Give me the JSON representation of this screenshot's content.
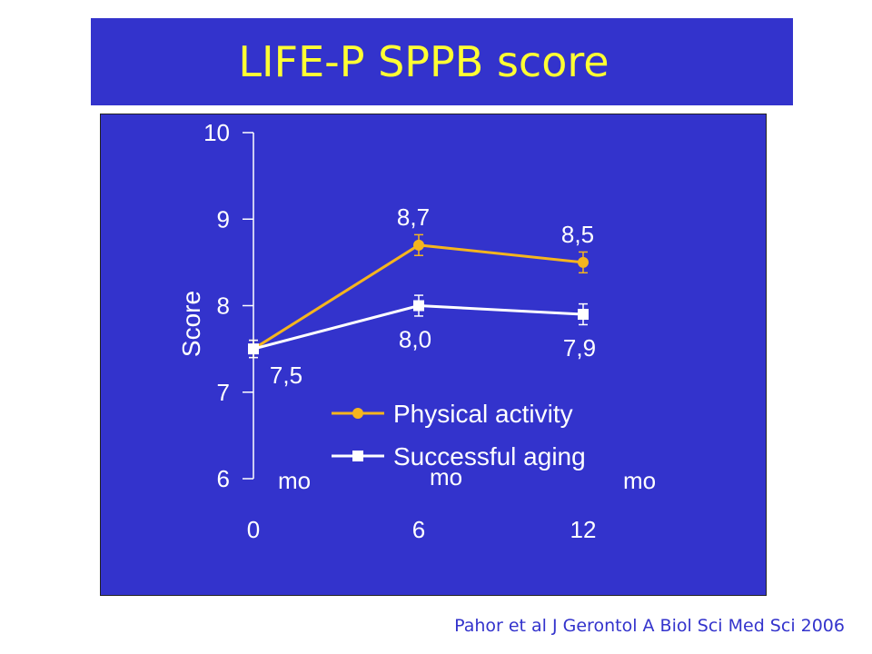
{
  "slide": {
    "title": "LIFE-P SPPB score",
    "citation": "Pahor et al J Gerontol A Biol Sci Med Sci 2006"
  },
  "colors": {
    "background": "#3333cc",
    "title": "#ffff33",
    "physical_activity": "#f5b51e",
    "successful_aging": "#ffffff",
    "citation": "#3333cc"
  },
  "chart_data": {
    "type": "line",
    "title": "",
    "xlabel": "",
    "ylabel": "Score",
    "ylim": [
      6,
      10
    ],
    "yticks": [
      "6",
      "7",
      "8",
      "9",
      "10"
    ],
    "x": [
      0,
      6,
      12
    ],
    "xticks": [
      "0",
      "6",
      "12"
    ],
    "x_unit_labels": [
      "mo",
      "mo",
      "mo"
    ],
    "grid": false,
    "legend": "center-bottom inside plot",
    "series": [
      {
        "name": "Physical activity",
        "values": [
          7.5,
          8.7,
          8.5
        ],
        "labels": [
          "",
          "8,7",
          "8,5"
        ],
        "error": [
          0.1,
          0.12,
          0.12
        ],
        "marker": "circle",
        "color": "#f5b51e"
      },
      {
        "name": "Successful aging",
        "values": [
          7.5,
          8.0,
          7.9
        ],
        "labels": [
          "7,5",
          "8,0",
          "7,9"
        ],
        "error": [
          0.1,
          0.12,
          0.12
        ],
        "marker": "square",
        "color": "#ffffff"
      }
    ]
  }
}
